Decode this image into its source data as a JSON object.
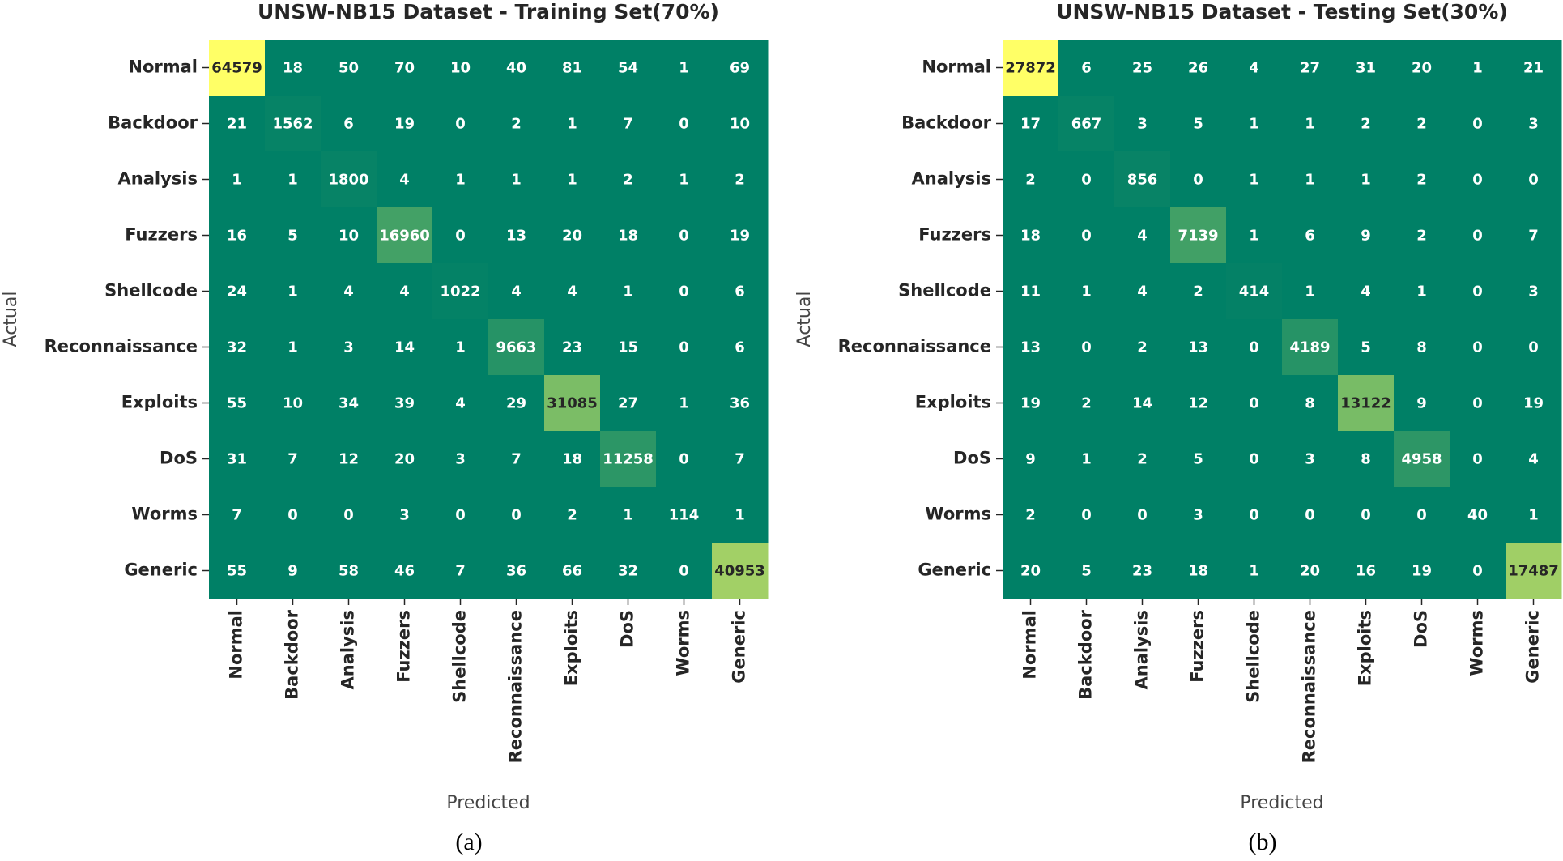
{
  "chart_data": [
    {
      "type": "heatmap",
      "title": "UNSW-NB15 Dataset - Training Set(70%)",
      "x_label": "Predicted",
      "y_label": "Actual",
      "caption": "(a)",
      "colormap": "summer",
      "categories": [
        "Normal",
        "Backdoor",
        "Analysis",
        "Fuzzers",
        "Shellcode",
        "Reconnaissance",
        "Exploits",
        "DoS",
        "Worms",
        "Generic"
      ],
      "values": [
        [
          64579,
          18,
          50,
          70,
          10,
          40,
          81,
          54,
          1,
          69
        ],
        [
          21,
          1562,
          6,
          19,
          0,
          2,
          1,
          7,
          0,
          10
        ],
        [
          1,
          1,
          1800,
          4,
          1,
          1,
          1,
          2,
          1,
          2
        ],
        [
          16,
          5,
          10,
          16960,
          0,
          13,
          20,
          18,
          0,
          19
        ],
        [
          24,
          1,
          4,
          4,
          1022,
          4,
          4,
          1,
          0,
          6
        ],
        [
          32,
          1,
          3,
          14,
          1,
          9663,
          23,
          15,
          0,
          6
        ],
        [
          55,
          10,
          34,
          39,
          4,
          29,
          31085,
          27,
          1,
          36
        ],
        [
          31,
          7,
          12,
          20,
          3,
          7,
          18,
          11258,
          0,
          7
        ],
        [
          7,
          0,
          0,
          3,
          0,
          0,
          2,
          1,
          114,
          1
        ],
        [
          55,
          9,
          58,
          46,
          7,
          36,
          66,
          32,
          0,
          40953
        ]
      ]
    },
    {
      "type": "heatmap",
      "title": "UNSW-NB15 Dataset - Testing Set(30%)",
      "x_label": "Predicted",
      "y_label": "Actual",
      "caption": "(b)",
      "colormap": "summer",
      "categories": [
        "Normal",
        "Backdoor",
        "Analysis",
        "Fuzzers",
        "Shellcode",
        "Reconnaissance",
        "Exploits",
        "DoS",
        "Worms",
        "Generic"
      ],
      "values": [
        [
          27872,
          6,
          25,
          26,
          4,
          27,
          31,
          20,
          1,
          21
        ],
        [
          17,
          667,
          3,
          5,
          1,
          1,
          2,
          2,
          0,
          3
        ],
        [
          2,
          0,
          856,
          0,
          1,
          1,
          1,
          2,
          0,
          0
        ],
        [
          18,
          0,
          4,
          7139,
          1,
          6,
          9,
          2,
          0,
          7
        ],
        [
          11,
          1,
          4,
          2,
          414,
          1,
          4,
          1,
          0,
          3
        ],
        [
          13,
          0,
          2,
          13,
          0,
          4189,
          5,
          8,
          0,
          0
        ],
        [
          19,
          2,
          14,
          12,
          0,
          8,
          13122,
          9,
          0,
          19
        ],
        [
          9,
          1,
          2,
          5,
          0,
          3,
          8,
          4958,
          0,
          4
        ],
        [
          2,
          0,
          0,
          3,
          0,
          0,
          0,
          0,
          40,
          1
        ],
        [
          20,
          5,
          23,
          18,
          1,
          20,
          16,
          19,
          0,
          17487
        ]
      ]
    }
  ]
}
